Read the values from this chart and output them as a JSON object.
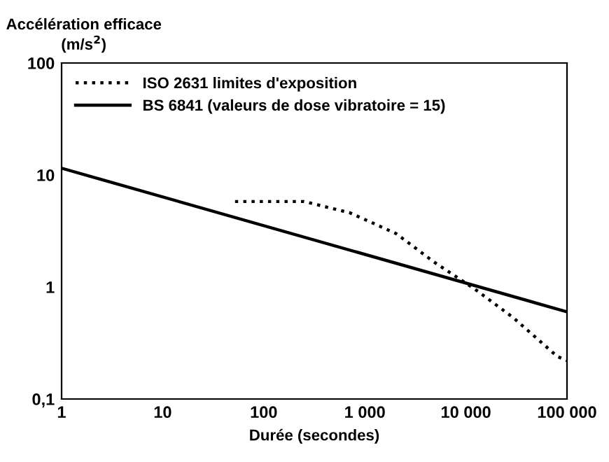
{
  "chart_data": {
    "type": "line",
    "xlabel": "Durée (secondes)",
    "ylabel": "Accélération efficace\n(m/s$^{2}$)",
    "log": "xy",
    "xlim": [
      1,
      100000
    ],
    "ylim": [
      0.1,
      100
    ],
    "xticks": [
      1,
      10,
      100,
      {
        "value": 1000,
        "label": "1 000"
      },
      {
        "value": 10000,
        "label": "10 000"
      },
      {
        "value": 100000,
        "label": "100 000"
      }
    ],
    "yticks": [
      {
        "value": 0.1,
        "label": "0,1"
      },
      1,
      10,
      100
    ],
    "grid": false,
    "legend": "top left",
    "series": [
      {
        "name": "ISO 2631 limites d'exposition",
        "color": "#000000",
        "line_style": "dotted",
        "x": [
          52,
          250,
          710,
          2040,
          4800,
          12600,
          29600,
          80000,
          100000
        ],
        "values": [
          5.8,
          5.8,
          4.6,
          3.0,
          1.68,
          0.94,
          0.53,
          0.24,
          0.22
        ]
      },
      {
        "name": "BS 6841 (valeurs de dose vibratoire = 15)",
        "color": "#000000",
        "line_style": "solid",
        "x": [
          1,
          100000
        ],
        "values": [
          11.5,
          0.6
        ]
      }
    ]
  }
}
